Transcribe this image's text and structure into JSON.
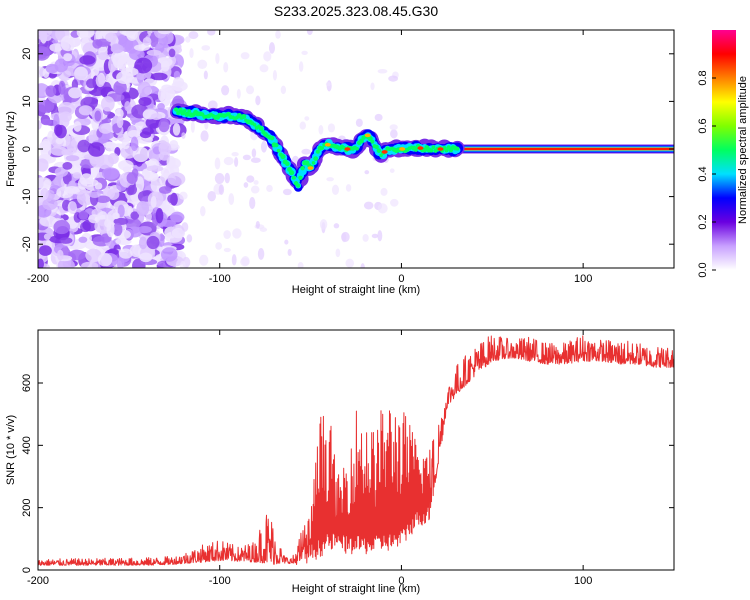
{
  "title": "S233.2025.323.08.45.G30",
  "chart_data": [
    {
      "type": "heatmap",
      "xlabel": "Height of straight line (km)",
      "ylabel": "Frequency (Hz)",
      "xlim": [
        -200,
        150
      ],
      "ylim": [
        -25,
        25
      ],
      "xticks": [
        -200,
        -100,
        0,
        100
      ],
      "yticks": [
        -20,
        -10,
        0,
        10,
        20
      ],
      "ridge": {
        "x": [
          -124,
          -115,
          -105,
          -95,
          -87,
          -80,
          -76,
          -72,
          -68,
          -65,
          -62,
          -59,
          -57,
          -55,
          -53,
          -50,
          -45,
          -40,
          -35,
          -30,
          -25,
          -22,
          -18,
          -15,
          -12,
          -10,
          -8,
          -5,
          0,
          10,
          20,
          30,
          150
        ],
        "y": [
          8,
          7.5,
          7,
          7,
          6.5,
          5,
          3.5,
          2.5,
          0,
          -2,
          -4,
          -6,
          -8,
          -5,
          -3,
          -4,
          0,
          1,
          0,
          0,
          0,
          2,
          3,
          1,
          -1,
          -1,
          0,
          0,
          0,
          0.2,
          0,
          0,
          0
        ]
      },
      "noise_region_x": [
        -200,
        -122
      ],
      "tone_region_x": [
        0,
        150
      ],
      "tone_frequency": 0
    },
    {
      "type": "colorbar",
      "label": "Normalized spectral amplitude",
      "range": [
        0,
        1
      ],
      "ticks": [
        0.0,
        0.2,
        0.4,
        0.6,
        0.8
      ],
      "tick_labels": [
        "0.0",
        "0.2",
        "0.4",
        "0.6",
        "0.8"
      ],
      "colors": [
        "#ffffff",
        "#c8a0ff",
        "#6a00e0",
        "#0000ff",
        "#00e0ff",
        "#00ff60",
        "#80ff00",
        "#ffff00",
        "#ff8000",
        "#ff0000",
        "#ff0090"
      ]
    },
    {
      "type": "line",
      "xlabel": "Height of straight line (km)",
      "ylabel": "SNR (10 * v/v)",
      "xlim": [
        -200,
        150
      ],
      "ylim": [
        0,
        770
      ],
      "xticks": [
        -200,
        -100,
        0,
        100
      ],
      "yticks": [
        0,
        200,
        400,
        600
      ],
      "series": [
        {
          "name": "SNR",
          "color": "#e83030",
          "envelope_x": [
            -200,
            -140,
            -125,
            -110,
            -100,
            -90,
            -80,
            -75,
            -70,
            -65,
            -60,
            -55,
            -50,
            -45,
            -40,
            -35,
            -30,
            -25,
            -20,
            -15,
            -10,
            -5,
            0,
            5,
            10,
            15,
            20,
            25,
            30,
            40,
            50,
            60,
            70,
            80,
            90,
            100,
            110,
            120,
            130,
            140,
            150
          ],
          "baseline": [
            15,
            15,
            18,
            25,
            30,
            28,
            25,
            22,
            18,
            22,
            20,
            15,
            25,
            40,
            60,
            60,
            50,
            50,
            50,
            50,
            60,
            60,
            70,
            110,
            140,
            150,
            320,
            520,
            560,
            620,
            670,
            680,
            670,
            660,
            660,
            670,
            670,
            660,
            660,
            650,
            650
          ],
          "peak": [
            35,
            40,
            45,
            80,
            100,
            75,
            95,
            210,
            160,
            50,
            40,
            130,
            180,
            500,
            520,
            300,
            380,
            530,
            500,
            450,
            540,
            550,
            530,
            470,
            400,
            400,
            490,
            590,
            660,
            720,
            760,
            740,
            750,
            730,
            730,
            760,
            740,
            740,
            730,
            720,
            720
          ]
        }
      ]
    }
  ]
}
